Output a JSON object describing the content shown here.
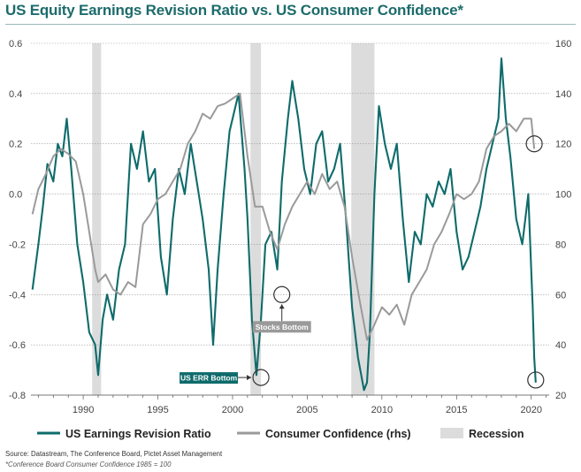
{
  "title": "US Equity Earnings Revision Ratio vs. US Consumer Confidence*",
  "source": "Source: Datastream, The Conference Board, Pictet Asset Management",
  "footnote": "*Conference Board Consumer Confidence 1985 = 100",
  "colors": {
    "err": "#0f6b6b",
    "cc": "#9a9a9a",
    "recession": "#dcdcdc",
    "title": "#1d6b6b",
    "grid": "#9a9a9a"
  },
  "chart_data": {
    "type": "line",
    "title": "US Equity Earnings Revision Ratio vs. US Consumer Confidence*",
    "x_ticks": [
      1990,
      1995,
      2000,
      2005,
      2010,
      2015,
      2020
    ],
    "xlim": [
      1986.5,
      2021.2
    ],
    "ylim_left": [
      -0.8,
      0.6
    ],
    "yticks_left": [
      "0.6",
      "0.4",
      "0.2",
      "0.0",
      "-0.2",
      "-0.4",
      "-0.6",
      "-0.8"
    ],
    "ylim_right": [
      20,
      160
    ],
    "yticks_right": [
      "160",
      "140",
      "120",
      "100",
      "80",
      "60",
      "40",
      "20"
    ],
    "grid": true,
    "legend_position": "bottom",
    "recessions": [
      [
        1990.6,
        1991.2
      ],
      [
        2001.2,
        2001.9
      ],
      [
        2007.95,
        2009.5
      ]
    ],
    "series": [
      {
        "name": "US Earnings Revision Ratio",
        "axis": "left",
        "x": [
          1986.6,
          1987.0,
          1987.3,
          1987.6,
          1988.0,
          1988.3,
          1988.6,
          1988.9,
          1989.2,
          1989.6,
          1990.0,
          1990.4,
          1990.8,
          1991.0,
          1991.3,
          1991.6,
          1992.0,
          1992.4,
          1992.8,
          1993.2,
          1993.6,
          1994.0,
          1994.4,
          1994.8,
          1995.2,
          1995.6,
          1996.0,
          1996.4,
          1996.8,
          1997.2,
          1997.6,
          1998.0,
          1998.4,
          1998.7,
          1999.0,
          1999.4,
          1999.8,
          2000.0,
          2000.4,
          2000.8,
          2001.0,
          2001.3,
          2001.6,
          2001.9,
          2002.2,
          2002.6,
          2003.0,
          2003.3,
          2003.7,
          2004.0,
          2004.4,
          2004.8,
          2005.2,
          2005.6,
          2006.0,
          2006.4,
          2006.8,
          2007.2,
          2007.6,
          2008.0,
          2008.4,
          2008.8,
          2009.0,
          2009.2,
          2009.5,
          2009.8,
          2010.2,
          2010.6,
          2011.0,
          2011.4,
          2011.8,
          2012.2,
          2012.6,
          2013.0,
          2013.4,
          2013.8,
          2014.2,
          2014.6,
          2015.0,
          2015.4,
          2015.8,
          2016.2,
          2016.6,
          2017.0,
          2017.4,
          2017.8,
          2018.0,
          2018.3,
          2018.6,
          2019.0,
          2019.4,
          2019.8,
          2020.0,
          2020.1,
          2020.2,
          2020.3
        ],
        "values": [
          -0.38,
          -0.2,
          -0.05,
          0.12,
          0.05,
          0.2,
          0.15,
          0.3,
          0.1,
          -0.2,
          -0.35,
          -0.55,
          -0.6,
          -0.72,
          -0.5,
          -0.4,
          -0.5,
          -0.3,
          -0.2,
          0.2,
          0.1,
          0.25,
          0.05,
          0.1,
          -0.25,
          -0.4,
          -0.1,
          0.1,
          0.0,
          0.2,
          0.05,
          -0.1,
          -0.3,
          -0.6,
          -0.3,
          0.0,
          0.25,
          0.3,
          0.4,
          0.1,
          -0.1,
          -0.5,
          -0.72,
          -0.5,
          -0.2,
          -0.15,
          -0.3,
          0.05,
          0.3,
          0.45,
          0.3,
          0.1,
          0.0,
          0.2,
          0.25,
          0.05,
          0.1,
          0.2,
          -0.1,
          -0.45,
          -0.65,
          -0.78,
          -0.75,
          -0.55,
          0.0,
          0.35,
          0.2,
          0.1,
          0.2,
          -0.1,
          -0.35,
          -0.15,
          -0.2,
          0.0,
          -0.05,
          0.05,
          0.0,
          0.1,
          -0.15,
          -0.3,
          -0.25,
          -0.15,
          -0.05,
          0.1,
          0.2,
          0.3,
          0.54,
          0.3,
          0.15,
          -0.1,
          -0.2,
          0.0,
          -0.3,
          -0.45,
          -0.65,
          -0.75
        ]
      },
      {
        "name": "Consumer Confidence (rhs)",
        "axis": "right",
        "x": [
          1986.6,
          1987.0,
          1987.5,
          1988.0,
          1988.5,
          1989.0,
          1989.5,
          1990.0,
          1990.4,
          1990.8,
          1991.0,
          1991.5,
          1992.0,
          1992.5,
          1993.0,
          1993.5,
          1994.0,
          1994.5,
          1995.0,
          1995.5,
          1996.0,
          1996.5,
          1997.0,
          1997.5,
          1998.0,
          1998.5,
          1999.0,
          1999.5,
          2000.0,
          2000.5,
          2001.0,
          2001.5,
          2002.0,
          2002.5,
          2003.0,
          2003.5,
          2004.0,
          2004.5,
          2005.0,
          2005.5,
          2006.0,
          2006.5,
          2007.0,
          2007.5,
          2008.0,
          2008.5,
          2009.0,
          2009.5,
          2010.0,
          2010.5,
          2011.0,
          2011.5,
          2012.0,
          2012.5,
          2013.0,
          2013.5,
          2014.0,
          2014.5,
          2015.0,
          2015.5,
          2016.0,
          2016.5,
          2017.0,
          2017.5,
          2018.0,
          2018.5,
          2019.0,
          2019.5,
          2020.0,
          2020.2
        ],
        "values": [
          92,
          102,
          108,
          115,
          118,
          116,
          113,
          100,
          85,
          70,
          65,
          68,
          62,
          60,
          65,
          63,
          88,
          92,
          98,
          100,
          105,
          110,
          120,
          125,
          132,
          130,
          135,
          136,
          138,
          140,
          115,
          95,
          95,
          85,
          78,
          88,
          95,
          100,
          105,
          100,
          108,
          102,
          105,
          95,
          75,
          58,
          42,
          48,
          55,
          52,
          56,
          48,
          60,
          65,
          70,
          80,
          85,
          92,
          100,
          98,
          100,
          105,
          118,
          123,
          125,
          128,
          125,
          130,
          130,
          118
        ]
      }
    ],
    "annotations": [
      {
        "text": "US ERR Bottom",
        "x": 2001.9,
        "y": -0.73,
        "axis": "left"
      },
      {
        "text": "Stocks Bottom",
        "x": 2003.3,
        "y": -0.4,
        "axis": "left"
      },
      {
        "x": 2020.2,
        "y": 0.2,
        "axis": "left",
        "marker": "circle"
      },
      {
        "x": 2020.3,
        "y": -0.74,
        "axis": "left",
        "marker": "circle"
      }
    ],
    "legend": [
      {
        "label": "US Earnings Revision Ratio",
        "kind": "line",
        "color": "#0f6b6b"
      },
      {
        "label": "Consumer Confidence (rhs)",
        "kind": "line",
        "color": "#9a9a9a"
      },
      {
        "label": "Recession",
        "kind": "box",
        "color": "#dcdcdc"
      }
    ]
  }
}
